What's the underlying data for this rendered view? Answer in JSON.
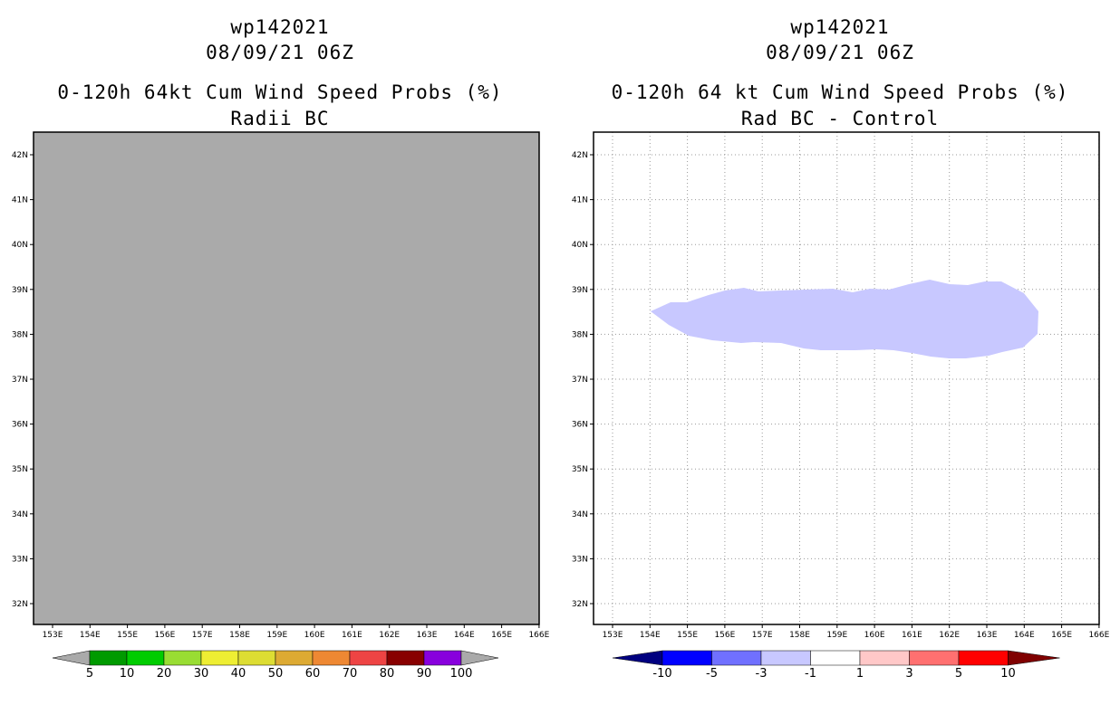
{
  "left_panel": {
    "title_line1": "wp142021",
    "title_line2": "08/09/21 06Z",
    "title_line3": "0-120h 64kt Cum Wind Speed Probs (%)",
    "title_line4": "Radii BC",
    "map_fill_color": "#aaaaaa",
    "colorbar": {
      "labels": [
        "5",
        "10",
        "20",
        "30",
        "40",
        "50",
        "60",
        "70",
        "80",
        "90",
        "100"
      ],
      "colors": [
        "#009a00",
        "#00cc00",
        "#99dd33",
        "#eeee33",
        "#dddd33",
        "#ddaa33",
        "#ee8833",
        "#ee4444",
        "#880000",
        "#8800dd"
      ],
      "end_color": "#aaaaaa"
    }
  },
  "right_panel": {
    "title_line1": "wp142021",
    "title_line2": "08/09/21 06Z",
    "title_line3": "0-120h 64 kt Cum Wind Speed Probs (%)",
    "title_line4": "Rad BC - Control",
    "shaded_region_color": "#c8c8ff",
    "colorbar": {
      "labels": [
        "-10",
        "-5",
        "-3",
        "-1",
        "1",
        "3",
        "5",
        "10"
      ],
      "colors": [
        "#0000ff",
        "#7070ff",
        "#c8c8ff",
        "#ffffff",
        "#ffc8c8",
        "#ff7070",
        "#ff0000"
      ],
      "low_end_color": "#000080",
      "high_end_color": "#800000"
    }
  },
  "lat_labels": [
    "42N",
    "41N",
    "40N",
    "39N",
    "38N",
    "37N",
    "36N",
    "35N",
    "34N",
    "33N",
    "32N"
  ],
  "lon_labels": [
    "153E",
    "154E",
    "155E",
    "156E",
    "157E",
    "158E",
    "159E",
    "160E",
    "161E",
    "162E",
    "163E",
    "164E",
    "165E",
    "166E"
  ]
}
